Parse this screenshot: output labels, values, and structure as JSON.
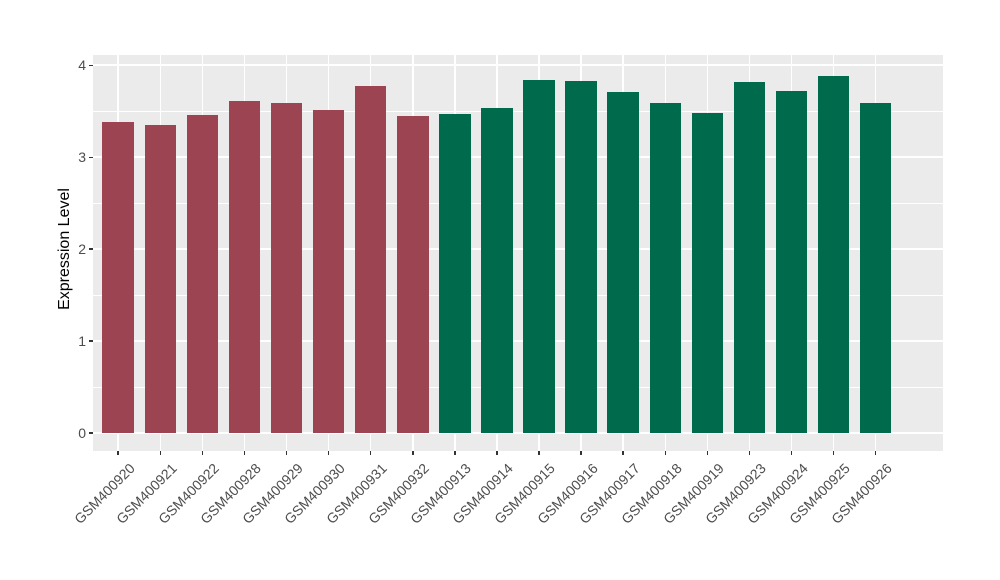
{
  "figure": {
    "background": "#FFFFFF",
    "panel_background": "#EBEBEB",
    "gridline_color": "#FFFFFF",
    "tick_color": "#333333",
    "axis_text_color": "#4D4D4D",
    "axis_title_color": "#000000"
  },
  "chart_data": {
    "type": "bar",
    "title": "",
    "xlabel": "",
    "ylabel": "Expression Level",
    "ylim": [
      0,
      4.1
    ],
    "yticks": [
      0,
      1,
      2,
      3,
      4
    ],
    "grid": "major-white-on-grey",
    "legend": "none",
    "categories": [
      "GSM400920",
      "GSM400921",
      "GSM400922",
      "GSM400928",
      "GSM400929",
      "GSM400930",
      "GSM400931",
      "GSM400932",
      "GSM400913",
      "GSM400914",
      "GSM400915",
      "GSM400916",
      "GSM400917",
      "GSM400918",
      "GSM400919",
      "GSM400923",
      "GSM400924",
      "GSM400925",
      "GSM400926"
    ],
    "values": [
      3.38,
      3.35,
      3.46,
      3.61,
      3.59,
      3.51,
      3.78,
      3.45,
      3.47,
      3.54,
      3.84,
      3.83,
      3.71,
      3.59,
      3.48,
      3.82,
      3.72,
      3.89,
      3.59
    ],
    "bar_colors": [
      "#9D4452",
      "#9D4452",
      "#9D4452",
      "#9D4452",
      "#9D4452",
      "#9D4452",
      "#9D4452",
      "#9D4452",
      "#006B4C",
      "#006B4C",
      "#006B4C",
      "#006B4C",
      "#006B4C",
      "#006B4C",
      "#006B4C",
      "#006B4C",
      "#006B4C",
      "#006B4C",
      "#006B4C"
    ],
    "color_legend_note": "first 8 bars maroon group, last 11 bars green group"
  }
}
